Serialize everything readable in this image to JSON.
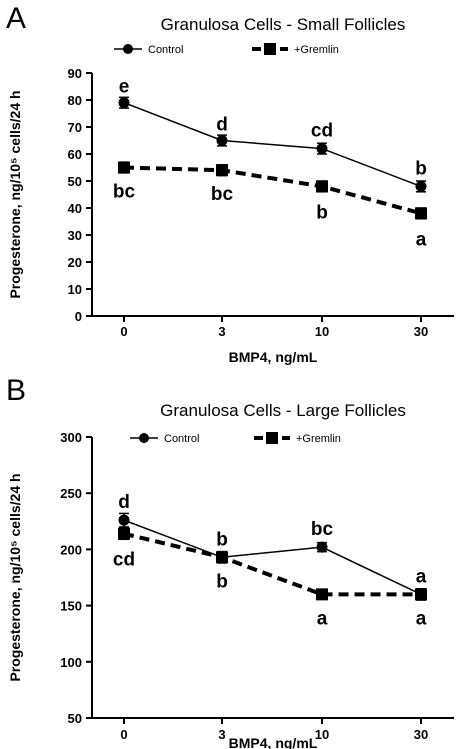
{
  "chart_data": [
    {
      "type": "line",
      "panel": "A",
      "title": "Granulosa Cells - Small Follicles",
      "xlabel": "BMP4,  ng/mL",
      "ylabel": "Progesterone,  ng/10⁵ cells/24 h",
      "categories": [
        "0",
        "3",
        "10",
        "30"
      ],
      "ylim": [
        0,
        90
      ],
      "yticks": [
        "0",
        "10",
        "20",
        "30",
        "40",
        "50",
        "60",
        "70",
        "80",
        "90"
      ],
      "legend_position": "top",
      "series": [
        {
          "name": "Control",
          "marker": "circle",
          "line": "solid",
          "values": [
            79,
            65,
            62,
            48
          ],
          "errors": [
            2,
            2,
            2,
            2
          ],
          "labels": [
            "e",
            "d",
            "cd",
            "b"
          ],
          "label_side": "above"
        },
        {
          "name": "+Gremlin",
          "marker": "square",
          "line": "dashed",
          "values": [
            55,
            54,
            48,
            38
          ],
          "errors": [
            2,
            2,
            2,
            2
          ],
          "labels": [
            "bc",
            "bc",
            "b",
            "a"
          ],
          "label_side": "below"
        }
      ]
    },
    {
      "type": "line",
      "panel": "B",
      "title": "Granulosa Cells - Large Follicles",
      "xlabel": "BMP4,  ng/mL",
      "ylabel": "Progesterone,  ng/10⁵ cells/24 h",
      "categories": [
        "0",
        "3",
        "10",
        "30"
      ],
      "ylim": [
        50,
        300
      ],
      "yticks": [
        "50",
        "100",
        "150",
        "200",
        "250",
        "300"
      ],
      "legend_position": "top",
      "series": [
        {
          "name": "Control",
          "marker": "circle",
          "line": "solid",
          "values": [
            226,
            193,
            202,
            160
          ],
          "errors": [
            6,
            5,
            4,
            5
          ],
          "labels": [
            "d",
            "b",
            "bc",
            "a"
          ],
          "label_side": "above"
        },
        {
          "name": "+Gremlin",
          "marker": "square",
          "line": "dashed",
          "values": [
            214,
            193,
            160,
            160
          ],
          "errors": [
            5,
            5,
            4,
            5
          ],
          "labels": [
            "cd",
            "b",
            "a",
            "a"
          ],
          "label_side": "below"
        }
      ]
    }
  ]
}
